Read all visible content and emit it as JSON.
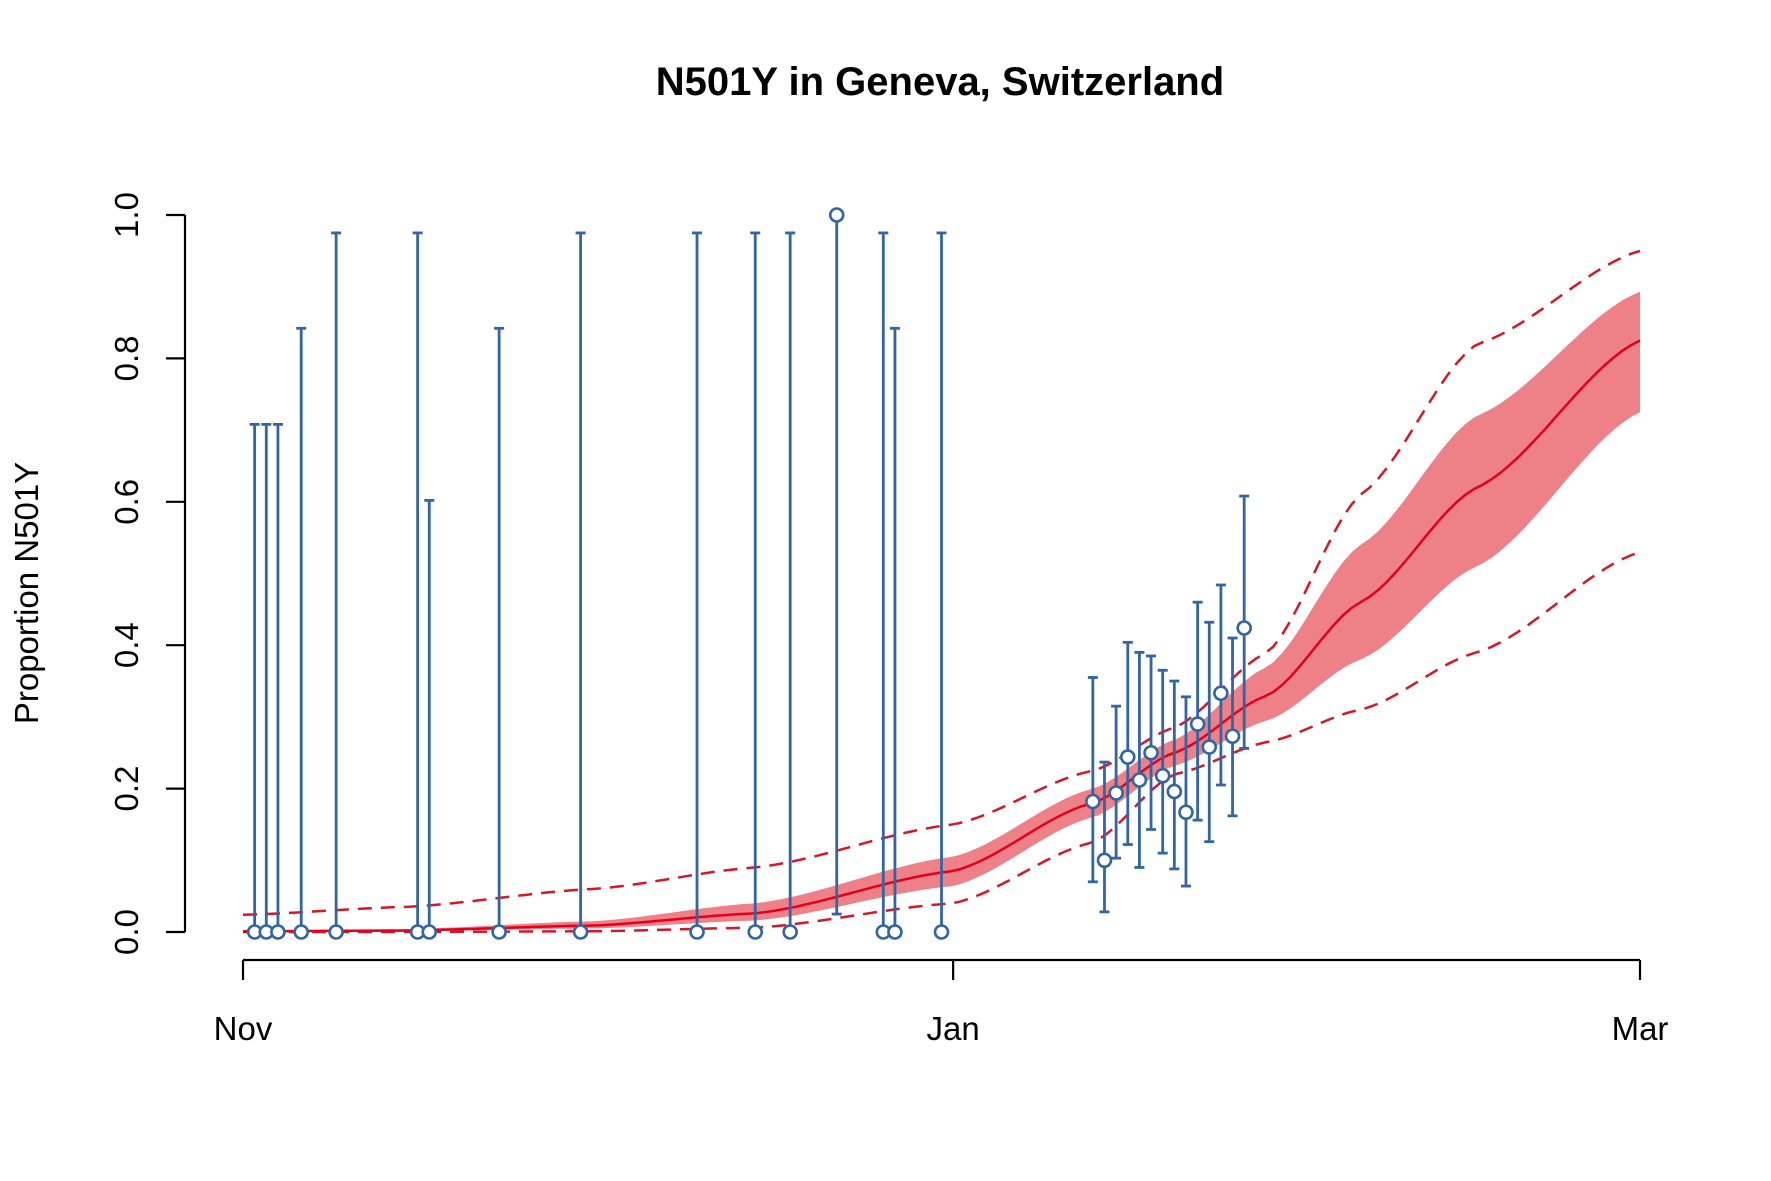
{
  "chart_data": {
    "type": "scatter",
    "title": "N501Y in Geneva, Switzerland",
    "xlabel": "",
    "ylabel": "Proportion N501Y",
    "x_axis": {
      "type": "date",
      "min": "2020-11-01",
      "max": "2021-03-01",
      "ticks": [
        {
          "date": "2020-11-01",
          "label": "Nov"
        },
        {
          "date": "2021-01-01",
          "label": "Jan"
        },
        {
          "date": "2021-03-01",
          "label": "Mar"
        }
      ]
    },
    "y_axis": {
      "min": 0,
      "max": 1,
      "ticks": [
        {
          "value": 0.0,
          "label": "0.0"
        },
        {
          "value": 0.2,
          "label": "0.2"
        },
        {
          "value": 0.4,
          "label": "0.4"
        },
        {
          "value": 0.6,
          "label": "0.6"
        },
        {
          "value": 0.8,
          "label": "0.8"
        },
        {
          "value": 1.0,
          "label": "1.0"
        }
      ]
    },
    "grid": false,
    "colors": {
      "points": "#3165a5",
      "fit_line": "#e3001b",
      "band": "#ee8088",
      "dashed": "#d91528"
    },
    "observations": [
      {
        "date": "2020-11-02",
        "y": 0.0,
        "lo": 0.0,
        "hi": 0.708
      },
      {
        "date": "2020-11-03",
        "y": 0.0,
        "lo": 0.0,
        "hi": 0.708
      },
      {
        "date": "2020-11-04",
        "y": 0.0,
        "lo": 0.0,
        "hi": 0.708
      },
      {
        "date": "2020-11-06",
        "y": 0.0,
        "lo": 0.0,
        "hi": 0.842
      },
      {
        "date": "2020-11-09",
        "y": 0.0,
        "lo": 0.0,
        "hi": 0.975
      },
      {
        "date": "2020-11-16",
        "y": 0.0,
        "lo": 0.0,
        "hi": 0.975
      },
      {
        "date": "2020-11-17",
        "y": 0.0,
        "lo": 0.0,
        "hi": 0.602
      },
      {
        "date": "2020-11-23",
        "y": 0.0,
        "lo": 0.0,
        "hi": 0.842
      },
      {
        "date": "2020-11-30",
        "y": 0.0,
        "lo": 0.0,
        "hi": 0.975
      },
      {
        "date": "2020-12-10",
        "y": 0.0,
        "lo": 0.0,
        "hi": 0.975
      },
      {
        "date": "2020-12-15",
        "y": 0.0,
        "lo": 0.0,
        "hi": 0.975
      },
      {
        "date": "2020-12-18",
        "y": 0.0,
        "lo": 0.0,
        "hi": 0.975
      },
      {
        "date": "2020-12-22",
        "y": 1.0,
        "lo": 0.025,
        "hi": 1.0
      },
      {
        "date": "2020-12-26",
        "y": 0.0,
        "lo": 0.0,
        "hi": 0.975
      },
      {
        "date": "2020-12-27",
        "y": 0.0,
        "lo": 0.0,
        "hi": 0.842
      },
      {
        "date": "2020-12-31",
        "y": 0.0,
        "lo": 0.0,
        "hi": 0.975
      },
      {
        "date": "2021-01-13",
        "y": 0.182,
        "lo": 0.07,
        "hi": 0.355
      },
      {
        "date": "2021-01-14",
        "y": 0.1,
        "lo": 0.028,
        "hi": 0.237
      },
      {
        "date": "2021-01-15",
        "y": 0.194,
        "lo": 0.103,
        "hi": 0.315
      },
      {
        "date": "2021-01-16",
        "y": 0.244,
        "lo": 0.122,
        "hi": 0.404
      },
      {
        "date": "2021-01-17",
        "y": 0.212,
        "lo": 0.09,
        "hi": 0.39
      },
      {
        "date": "2021-01-18",
        "y": 0.25,
        "lo": 0.143,
        "hi": 0.385
      },
      {
        "date": "2021-01-19",
        "y": 0.218,
        "lo": 0.11,
        "hi": 0.365
      },
      {
        "date": "2021-01-20",
        "y": 0.196,
        "lo": 0.088,
        "hi": 0.35
      },
      {
        "date": "2021-01-21",
        "y": 0.167,
        "lo": 0.064,
        "hi": 0.328
      },
      {
        "date": "2021-01-22",
        "y": 0.29,
        "lo": 0.156,
        "hi": 0.46
      },
      {
        "date": "2021-01-23",
        "y": 0.258,
        "lo": 0.126,
        "hi": 0.432
      },
      {
        "date": "2021-01-24",
        "y": 0.333,
        "lo": 0.205,
        "hi": 0.484
      },
      {
        "date": "2021-01-25",
        "y": 0.273,
        "lo": 0.162,
        "hi": 0.41
      },
      {
        "date": "2021-01-26",
        "y": 0.424,
        "lo": 0.256,
        "hi": 0.608
      }
    ],
    "fit": [
      {
        "date": "2020-11-01",
        "y": 0.001,
        "band_lo": 0.0,
        "band_hi": 0.002,
        "dash_lo": 0.0,
        "dash_hi": 0.024
      },
      {
        "date": "2020-11-15",
        "y": 0.002,
        "band_lo": 0.001,
        "band_hi": 0.004,
        "dash_lo": 0.0,
        "dash_hi": 0.035
      },
      {
        "date": "2020-12-01",
        "y": 0.009,
        "band_lo": 0.005,
        "band_hi": 0.015,
        "dash_lo": 0.001,
        "dash_hi": 0.06
      },
      {
        "date": "2020-12-15",
        "y": 0.026,
        "band_lo": 0.016,
        "band_hi": 0.04,
        "dash_lo": 0.006,
        "dash_hi": 0.09
      },
      {
        "date": "2021-01-01",
        "y": 0.085,
        "band_lo": 0.064,
        "band_hi": 0.105,
        "dash_lo": 0.04,
        "dash_hi": 0.15
      },
      {
        "date": "2021-01-13",
        "y": 0.18,
        "band_lo": 0.16,
        "band_hi": 0.2,
        "dash_lo": 0.125,
        "dash_hi": 0.225
      },
      {
        "date": "2021-01-20",
        "y": 0.25,
        "band_lo": 0.232,
        "band_hi": 0.268,
        "dash_lo": 0.22,
        "dash_hi": 0.285
      },
      {
        "date": "2021-01-28",
        "y": 0.33,
        "band_lo": 0.295,
        "band_hi": 0.37,
        "dash_lo": 0.265,
        "dash_hi": 0.39
      },
      {
        "date": "2021-02-05",
        "y": 0.46,
        "band_lo": 0.38,
        "band_hi": 0.54,
        "dash_lo": 0.31,
        "dash_hi": 0.61
      },
      {
        "date": "2021-02-15",
        "y": 0.62,
        "band_lo": 0.51,
        "band_hi": 0.72,
        "dash_lo": 0.39,
        "dash_hi": 0.82
      },
      {
        "date": "2021-03-01",
        "y": 0.825,
        "band_lo": 0.725,
        "band_hi": 0.893,
        "dash_lo": 0.53,
        "dash_hi": 0.95
      }
    ]
  }
}
